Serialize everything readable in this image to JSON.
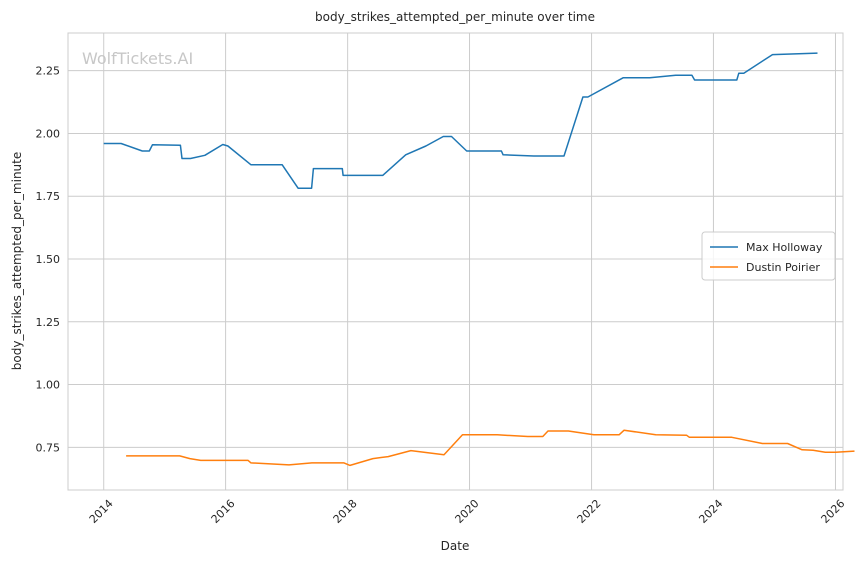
{
  "watermark": "WolfTickets.AI",
  "chart_data": {
    "type": "line",
    "title": "body_strikes_attempted_per_minute over time",
    "xlabel": "Date",
    "ylabel": "body_strikes_attempted_per_minute",
    "x_axis": "date",
    "xlim": [
      "2013-06-01",
      "2026-02-15"
    ],
    "ylim": [
      0.58,
      2.4
    ],
    "x_ticks": [
      "2014",
      "2016",
      "2018",
      "2020",
      "2022",
      "2024",
      "2026"
    ],
    "y_ticks": [
      "0.75",
      "1.00",
      "1.25",
      "1.50",
      "1.75",
      "2.00",
      "2.25"
    ],
    "grid": true,
    "legend_position": "center-right",
    "series": [
      {
        "name": "Max Holloway",
        "color": "#1f77b4",
        "points": [
          [
            "2014-01-01",
            1.96
          ],
          [
            "2014-04-15",
            1.96
          ],
          [
            "2014-08-20",
            1.93
          ],
          [
            "2014-10-01",
            1.93
          ],
          [
            "2014-10-20",
            1.955
          ],
          [
            "2015-04-05",
            1.953
          ],
          [
            "2015-04-15",
            1.9
          ],
          [
            "2015-06-05",
            1.9
          ],
          [
            "2015-08-30",
            1.913
          ],
          [
            "2015-12-15",
            1.956
          ],
          [
            "2016-01-15",
            1.95
          ],
          [
            "2016-06-01",
            1.875
          ],
          [
            "2016-12-05",
            1.875
          ],
          [
            "2017-03-10",
            1.782
          ],
          [
            "2017-05-30",
            1.782
          ],
          [
            "2017-06-10",
            1.86
          ],
          [
            "2017-11-30",
            1.86
          ],
          [
            "2017-12-05",
            1.833
          ],
          [
            "2018-07-30",
            1.833
          ],
          [
            "2018-12-15",
            1.915
          ],
          [
            "2019-04-15",
            1.95
          ],
          [
            "2019-07-28",
            1.988
          ],
          [
            "2019-09-15",
            1.988
          ],
          [
            "2019-12-15",
            1.93
          ],
          [
            "2020-07-10",
            1.93
          ],
          [
            "2020-07-20",
            1.915
          ],
          [
            "2021-01-20",
            1.91
          ],
          [
            "2021-07-20",
            1.91
          ],
          [
            "2021-11-10",
            2.145
          ],
          [
            "2021-12-10",
            2.145
          ],
          [
            "2022-07-10",
            2.222
          ],
          [
            "2022-12-15",
            2.222
          ],
          [
            "2023-05-20",
            2.232
          ],
          [
            "2023-08-25",
            2.232
          ],
          [
            "2023-09-10",
            2.213
          ],
          [
            "2024-05-20",
            2.213
          ],
          [
            "2024-06-01",
            2.24
          ],
          [
            "2024-07-01",
            2.24
          ],
          [
            "2024-12-20",
            2.314
          ],
          [
            "2025-09-15",
            2.32
          ]
        ]
      },
      {
        "name": "Dustin Poirier",
        "color": "#ff7f0e",
        "points": [
          [
            "2014-05-15",
            0.716
          ],
          [
            "2015-04-01",
            0.716
          ],
          [
            "2015-06-01",
            0.705
          ],
          [
            "2015-08-05",
            0.698
          ],
          [
            "2016-05-15",
            0.698
          ],
          [
            "2016-06-01",
            0.688
          ],
          [
            "2017-01-15",
            0.68
          ],
          [
            "2017-06-01",
            0.688
          ],
          [
            "2017-12-10",
            0.688
          ],
          [
            "2018-01-15",
            0.678
          ],
          [
            "2018-06-01",
            0.705
          ],
          [
            "2018-09-01",
            0.713
          ],
          [
            "2019-01-15",
            0.737
          ],
          [
            "2019-08-01",
            0.72
          ],
          [
            "2019-11-20",
            0.8
          ],
          [
            "2020-06-15",
            0.8
          ],
          [
            "2020-12-15",
            0.793
          ],
          [
            "2021-03-15",
            0.793
          ],
          [
            "2021-04-15",
            0.815
          ],
          [
            "2021-08-15",
            0.815
          ],
          [
            "2022-01-15",
            0.8
          ],
          [
            "2022-06-15",
            0.8
          ],
          [
            "2022-07-15",
            0.818
          ],
          [
            "2023-01-20",
            0.8
          ],
          [
            "2023-07-25",
            0.798
          ],
          [
            "2023-08-10",
            0.79
          ],
          [
            "2024-04-20",
            0.79
          ],
          [
            "2024-10-20",
            0.765
          ],
          [
            "2025-03-20",
            0.765
          ],
          [
            "2025-06-15",
            0.74
          ],
          [
            "2025-08-20",
            0.738
          ],
          [
            "2025-11-01",
            0.73
          ],
          [
            "2026-01-01",
            0.73
          ],
          [
            "2026-04-25",
            0.735
          ]
        ]
      }
    ]
  }
}
